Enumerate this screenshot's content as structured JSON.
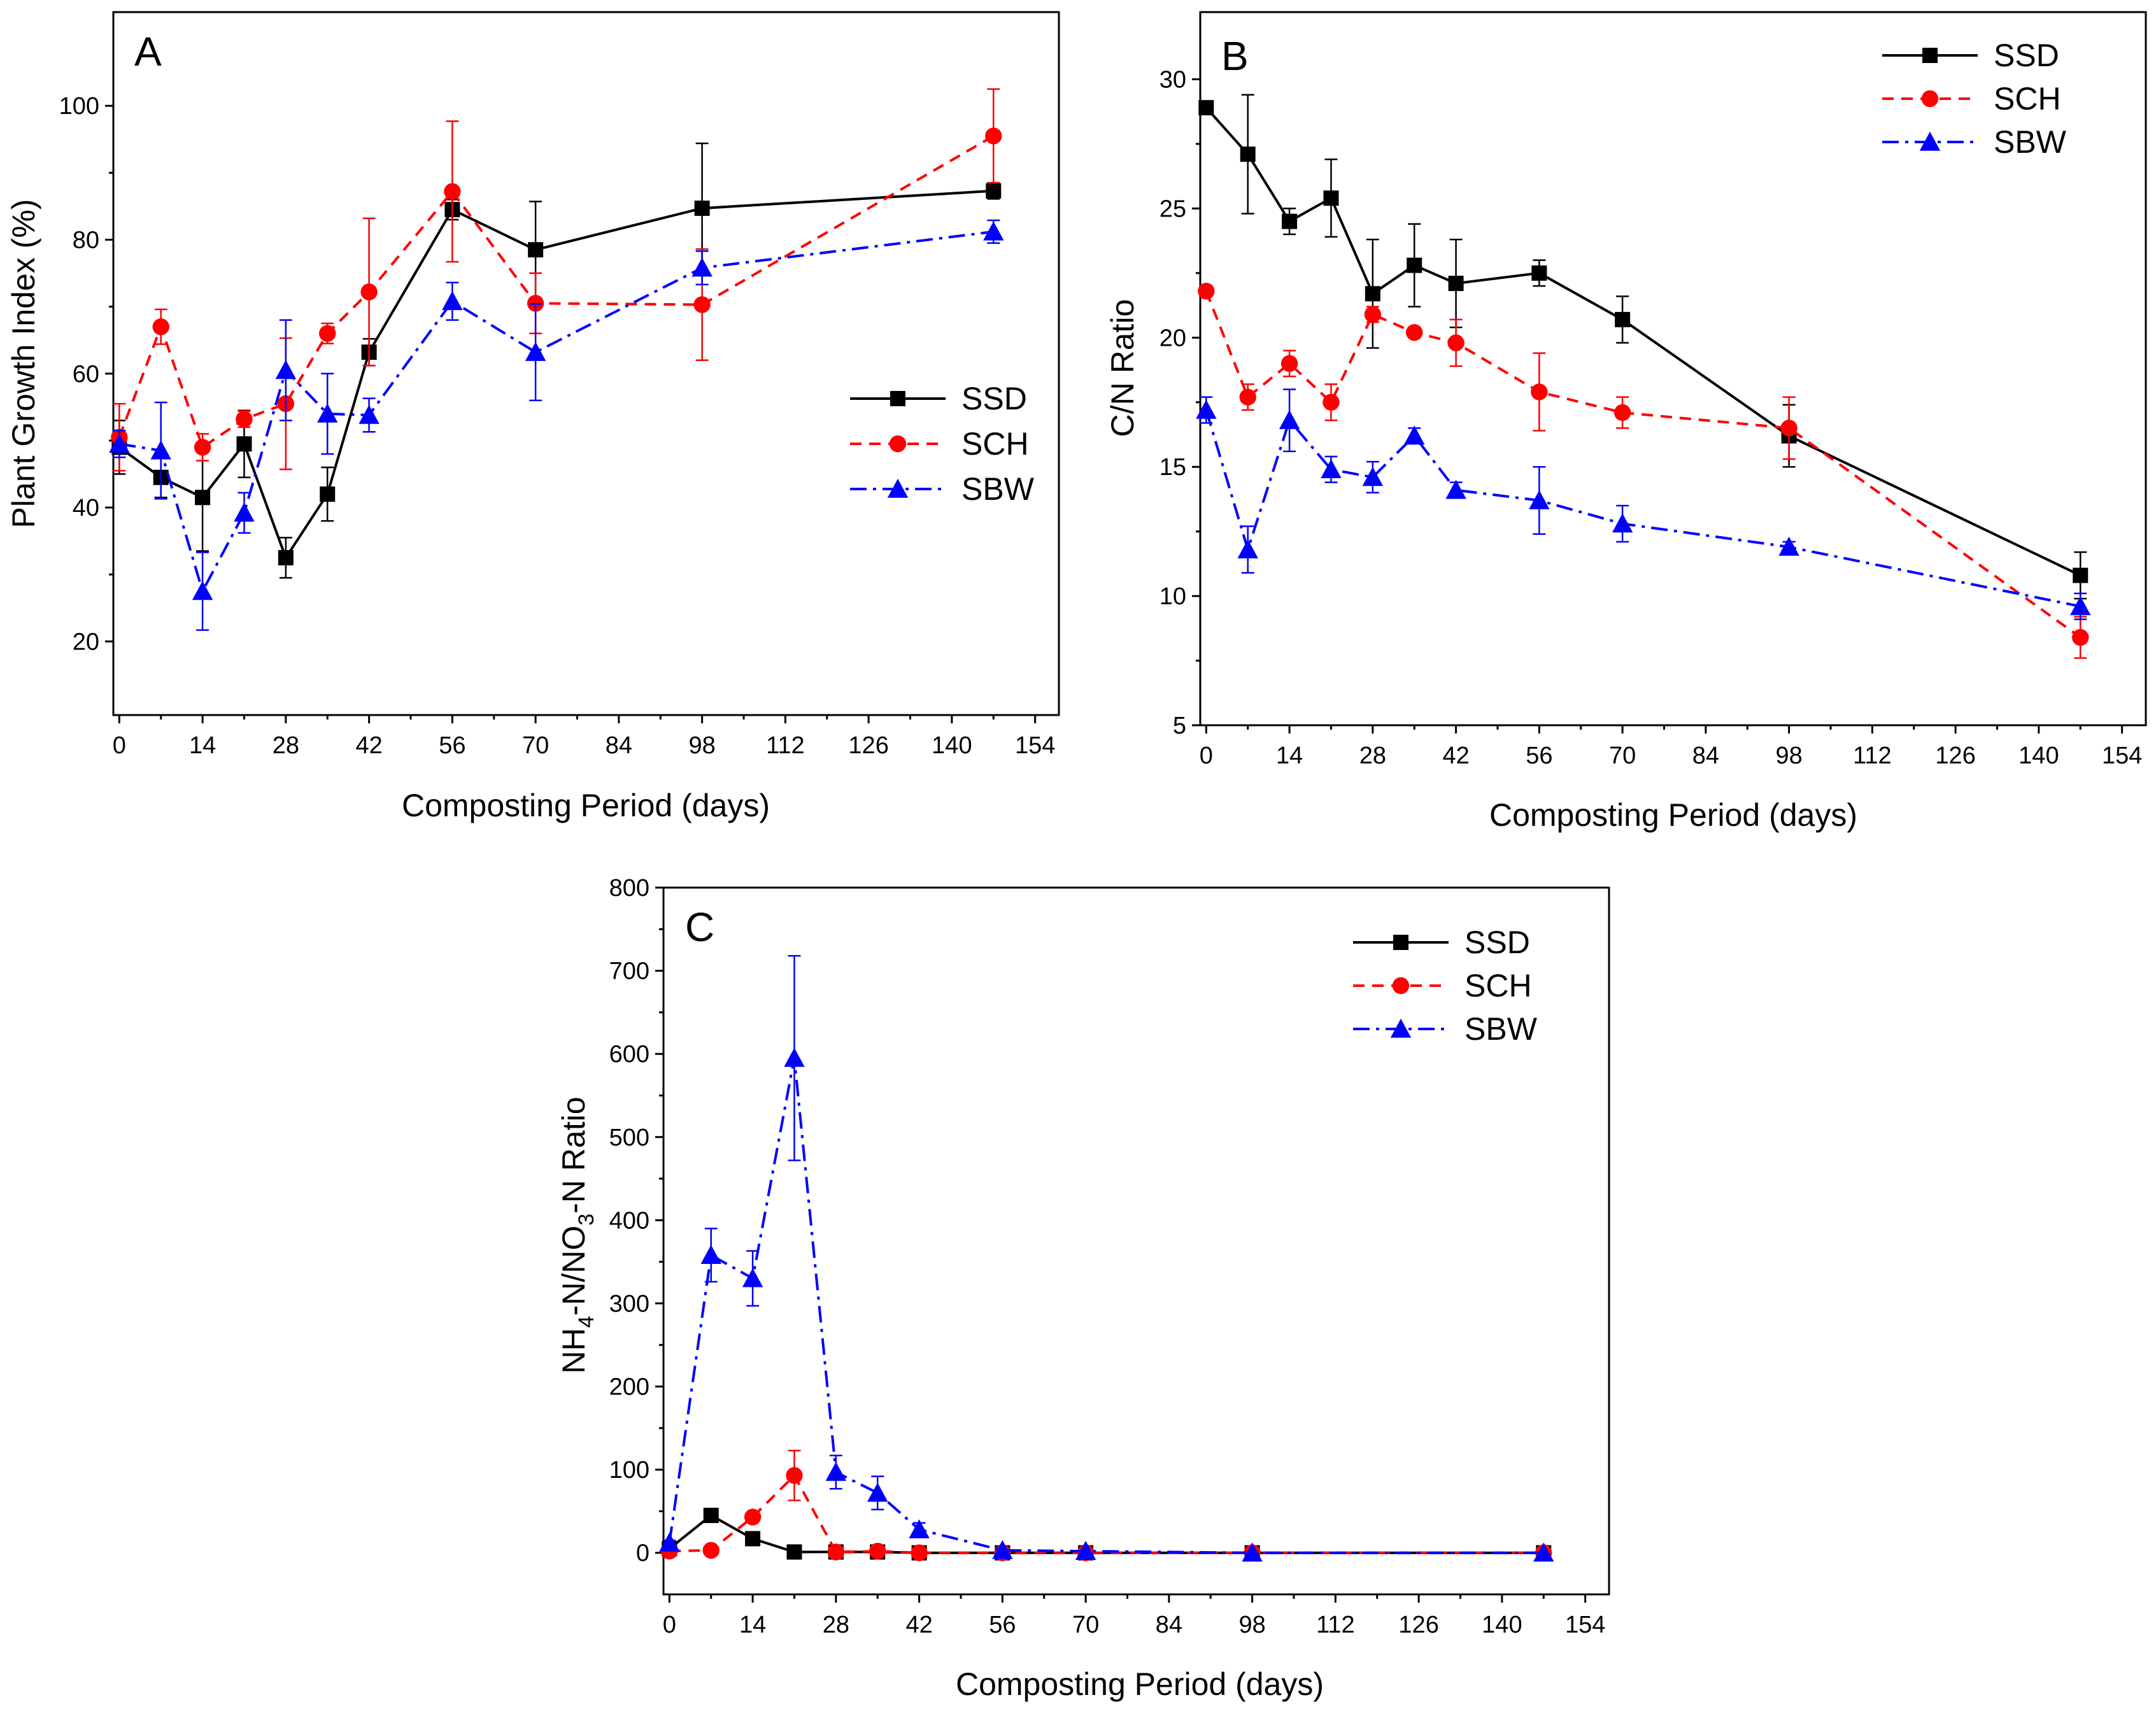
{
  "colors": {
    "SSD": "#000000",
    "SCH": "#ff0000",
    "SBW": "#0000ff"
  },
  "chart_data": [
    {
      "type": "line",
      "panel": "A",
      "xlabel": "Composting Period (days)",
      "ylabel": "Plant Growth Index (%)",
      "xlim": [
        -1,
        158
      ],
      "ylim": [
        9,
        114
      ],
      "xticks": [
        0,
        14,
        28,
        42,
        56,
        70,
        84,
        98,
        112,
        126,
        140,
        154
      ],
      "yticks": [
        20,
        40,
        60,
        80,
        100
      ],
      "legend": {
        "position": "middle-right"
      },
      "series": [
        {
          "name": "SSD",
          "marker": "square",
          "dash": "solid",
          "x": [
            0,
            7,
            14,
            21,
            28,
            35,
            42,
            56,
            70,
            98,
            147
          ],
          "y": [
            49,
            44.5,
            41.5,
            49.5,
            32.5,
            42,
            63.2,
            84.5,
            78.5,
            84.7,
            87.3
          ],
          "err": [
            4,
            3,
            8,
            5,
            3,
            4,
            2,
            1.5,
            7.2,
            9.7,
            1.2
          ]
        },
        {
          "name": "SCH",
          "marker": "circle",
          "dash": "dashed",
          "x": [
            0,
            7,
            14,
            21,
            28,
            35,
            42,
            56,
            70,
            98,
            147
          ],
          "y": [
            50.5,
            67,
            49,
            53.2,
            55.5,
            66,
            72.2,
            87.2,
            70.5,
            70.3,
            95.5
          ],
          "err": [
            5,
            2.6,
            2,
            1.2,
            9.8,
            1.5,
            11,
            10.5,
            4.5,
            8.3,
            7
          ]
        },
        {
          "name": "SBW",
          "marker": "triangle",
          "dash": "dashdot",
          "x": [
            0,
            7,
            14,
            21,
            28,
            35,
            42,
            56,
            70,
            98,
            147
          ],
          "y": [
            49.5,
            48.5,
            27.5,
            39.2,
            60.5,
            54,
            53.8,
            70.8,
            63.2,
            75.8,
            81.2
          ],
          "err": [
            2,
            7.2,
            5.8,
            3,
            7.5,
            6,
            2.5,
            2.8,
            7.2,
            2.5,
            1.7
          ]
        }
      ]
    },
    {
      "type": "line",
      "panel": "B",
      "xlabel": "Composting Period (days)",
      "ylabel": "C/N Ratio",
      "xlim": [
        -1,
        158
      ],
      "ylim": [
        5,
        32.6
      ],
      "xticks": [
        0,
        14,
        28,
        42,
        56,
        70,
        84,
        98,
        112,
        126,
        140,
        154
      ],
      "yticks": [
        5,
        10,
        15,
        20,
        25,
        30
      ],
      "legend": {
        "position": "top-right"
      },
      "series": [
        {
          "name": "SSD",
          "marker": "square",
          "dash": "solid",
          "x": [
            0,
            7,
            14,
            21,
            28,
            35,
            42,
            56,
            70,
            98,
            147
          ],
          "y": [
            28.9,
            27.1,
            24.5,
            25.4,
            21.7,
            22.8,
            22.1,
            22.5,
            20.7,
            16.2,
            10.8
          ],
          "err": [
            0.2,
            2.3,
            0.5,
            1.5,
            2.1,
            1.6,
            1.7,
            0.5,
            0.9,
            1.2,
            0.9
          ]
        },
        {
          "name": "SCH",
          "marker": "circle",
          "dash": "dashed",
          "x": [
            0,
            7,
            14,
            21,
            28,
            35,
            42,
            56,
            70,
            98,
            147
          ],
          "y": [
            21.8,
            17.7,
            19,
            17.5,
            20.9,
            20.2,
            19.8,
            17.9,
            17.1,
            16.5,
            8.4
          ],
          "err": [
            0.2,
            0.5,
            0.5,
            0.7,
            0.3,
            0.2,
            0.9,
            1.5,
            0.6,
            1.2,
            0.8
          ]
        },
        {
          "name": "SBW",
          "marker": "triangle",
          "dash": "dashdot",
          "x": [
            0,
            7,
            14,
            21,
            28,
            35,
            42,
            56,
            70,
            98,
            147
          ],
          "y": [
            17.2,
            11.8,
            16.8,
            14.9,
            14.6,
            16.2,
            14.1,
            13.7,
            12.8,
            11.9,
            9.6
          ],
          "err": [
            0.5,
            0.9,
            1.2,
            0.5,
            0.6,
            0.3,
            0.3,
            1.3,
            0.7,
            0.2,
            0.5
          ]
        }
      ]
    },
    {
      "type": "line",
      "panel": "C",
      "xlabel": "Composting Period (days)",
      "ylabel_main": "NH",
      "ylabel_sub1": "4",
      "ylabel_mid": "-N/NO",
      "ylabel_sub2": "3",
      "ylabel_tail": "-N Ratio",
      "xlim": [
        -1,
        158
      ],
      "ylim": [
        -50,
        800
      ],
      "xticks": [
        0,
        14,
        28,
        42,
        56,
        70,
        84,
        98,
        112,
        126,
        140,
        154
      ],
      "yticks": [
        0,
        100,
        200,
        300,
        400,
        500,
        600,
        700,
        800
      ],
      "legend": {
        "position": "top-right"
      },
      "series": [
        {
          "name": "SSD",
          "marker": "square",
          "dash": "solid",
          "x": [
            0,
            7,
            14,
            21,
            28,
            35,
            42,
            56,
            70,
            98,
            147
          ],
          "y": [
            5,
            45,
            17,
            1,
            1,
            1,
            0,
            0,
            0,
            0,
            0
          ],
          "err": [
            0,
            8,
            3,
            0,
            0,
            0,
            0,
            0,
            0,
            0,
            0
          ]
        },
        {
          "name": "SCH",
          "marker": "circle",
          "dash": "dashed",
          "x": [
            0,
            7,
            14,
            21,
            28,
            35,
            42,
            56,
            70,
            98,
            147
          ],
          "y": [
            2,
            3,
            43,
            93,
            1,
            2,
            0,
            0,
            0,
            0,
            0
          ],
          "err": [
            0,
            0,
            4,
            30,
            0,
            0,
            0,
            0,
            0,
            0,
            0
          ]
        },
        {
          "name": "SBW",
          "marker": "triangle",
          "dash": "dashdot",
          "x": [
            0,
            7,
            14,
            21,
            28,
            35,
            42,
            56,
            70,
            98,
            147
          ],
          "y": [
            12,
            358,
            330,
            595,
            97,
            72,
            28,
            3,
            2,
            0,
            0
          ],
          "err": [
            3,
            32,
            33,
            123,
            20,
            20,
            8,
            0,
            0,
            0,
            0
          ]
        }
      ]
    }
  ]
}
